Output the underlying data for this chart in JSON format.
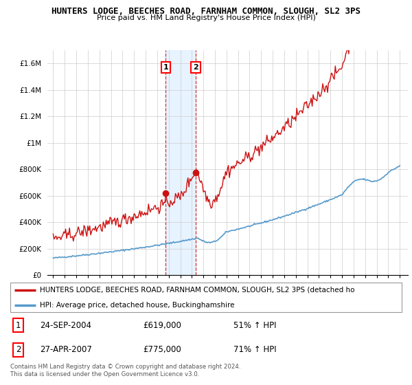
{
  "title": "HUNTERS LODGE, BEECHES ROAD, FARNHAM COMMON, SLOUGH, SL2 3PS",
  "subtitle": "Price paid vs. HM Land Registry's House Price Index (HPI)",
  "hpi_color": "#5599cc",
  "price_color": "#cc1111",
  "sale1_date": "24-SEP-2004",
  "sale1_price": 619000,
  "sale1_label": "51% ↑ HPI",
  "sale2_date": "27-APR-2007",
  "sale2_price": 775000,
  "sale2_label": "71% ↑ HPI",
  "legend_line1": "HUNTERS LODGE, BEECHES ROAD, FARNHAM COMMON, SLOUGH, SL2 3PS (detached ho",
  "legend_line2": "HPI: Average price, detached house, Buckinghamshire",
  "footnote": "Contains HM Land Registry data © Crown copyright and database right 2024.\nThis data is licensed under the Open Government Licence v3.0.",
  "background_color": "#ffffff",
  "grid_color": "#cccccc",
  "shade_color": "#ddeeff"
}
